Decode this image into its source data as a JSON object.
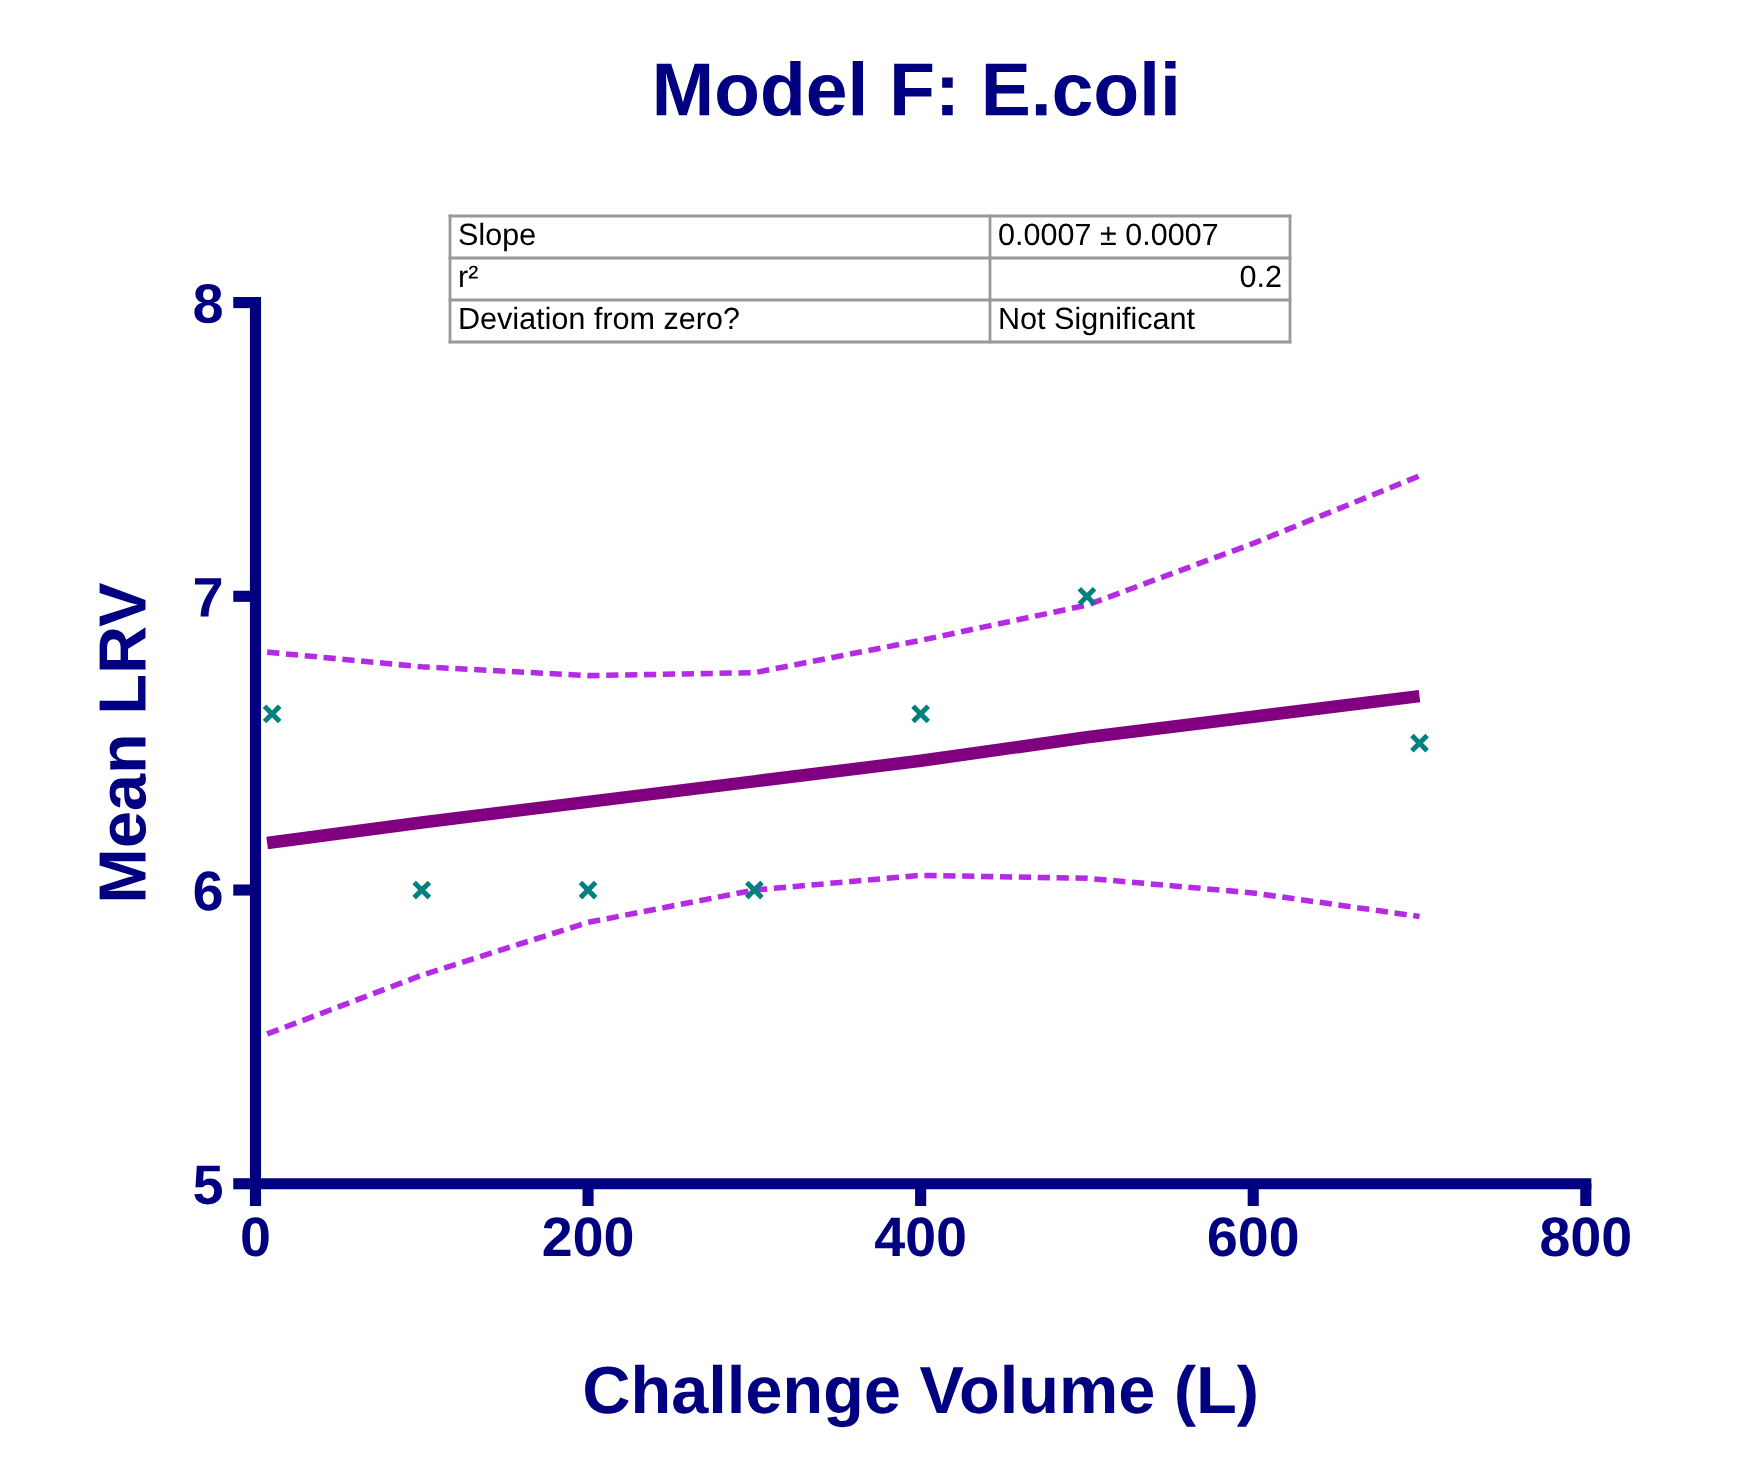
{
  "chart_data": {
    "type": "scatter",
    "title": "Model F: E.coli",
    "xlabel": "Challenge Volume (L)",
    "ylabel": "Mean LRV",
    "xlim": [
      0,
      800
    ],
    "xticks": [
      0,
      200,
      400,
      600,
      800
    ],
    "ylim": [
      5,
      8
    ],
    "yticks": [
      5,
      6,
      7,
      8
    ],
    "grid": false,
    "legend": false,
    "series": [
      {
        "color": "#008080",
        "marker": "cross",
        "x": [
          10,
          100,
          200,
          300,
          400,
          500,
          700
        ],
        "values": [
          6.6,
          6.0,
          6.0,
          6.0,
          6.6,
          7.0,
          6.5
        ]
      },
      {
        "type": "line",
        "color": "#800080",
        "marker": "none",
        "line_style": "solid",
        "x": [
          7,
          100,
          200,
          300,
          400,
          500,
          600,
          700
        ],
        "values": [
          6.16,
          6.23,
          6.3,
          6.37,
          6.44,
          6.52,
          6.59,
          6.66
        ]
      },
      {
        "type": "line",
        "color": "#b52be3",
        "marker": "none",
        "line_style": "dashed",
        "x": [
          7,
          100,
          200,
          300,
          400,
          500,
          600,
          700
        ],
        "values": [
          6.81,
          6.76,
          6.73,
          6.74,
          6.85,
          6.97,
          7.18,
          7.41
        ]
      },
      {
        "type": "line",
        "color": "#b52be3",
        "marker": "none",
        "line_style": "dashed",
        "x": [
          7,
          100,
          200,
          300,
          400,
          500,
          600,
          700
        ],
        "values": [
          5.51,
          5.71,
          5.89,
          6.0,
          6.05,
          6.04,
          5.99,
          5.91
        ]
      }
    ],
    "annotations": [
      "Slope",
      "0.0007 ± 0.0007",
      "r²",
      "0.2",
      "Deviation from zero?",
      "Not Significant"
    ]
  }
}
